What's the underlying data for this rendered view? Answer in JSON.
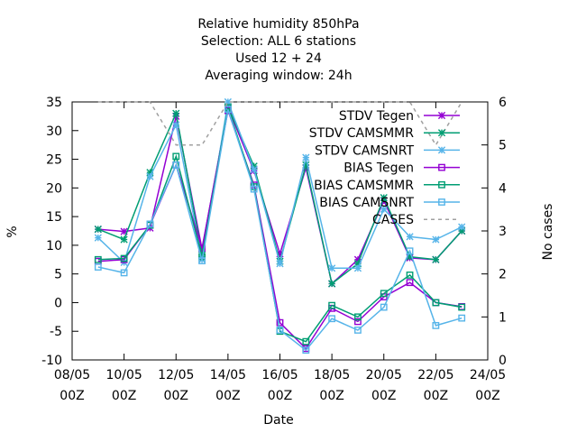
{
  "chart_data": {
    "type": "line",
    "title_lines": [
      "Relative humidity 850hPa",
      "Selection: ALL      6 stations",
      "Used  12 + 24",
      "Averaging window: 24h"
    ],
    "xlabel": "Date",
    "ylabel": "%",
    "y2label": "No cases",
    "xlim": [
      "2024-05-08",
      "2024-05-24"
    ],
    "ylim": [
      -10,
      35
    ],
    "y2lim": [
      0,
      6
    ],
    "xticks": [
      {
        "date": "2024-05-08",
        "label_line1": "08/05",
        "label_line2": "00Z"
      },
      {
        "date": "2024-05-10",
        "label_line1": "10/05",
        "label_line2": "00Z"
      },
      {
        "date": "2024-05-12",
        "label_line1": "12/05",
        "label_line2": "00Z"
      },
      {
        "date": "2024-05-14",
        "label_line1": "14/05",
        "label_line2": "00Z"
      },
      {
        "date": "2024-05-16",
        "label_line1": "16/05",
        "label_line2": "00Z"
      },
      {
        "date": "2024-05-18",
        "label_line1": "18/05",
        "label_line2": "00Z"
      },
      {
        "date": "2024-05-20",
        "label_line1": "20/05",
        "label_line2": "00Z"
      },
      {
        "date": "2024-05-22",
        "label_line1": "22/05",
        "label_line2": "00Z"
      },
      {
        "date": "2024-05-24",
        "label_line1": "24/05",
        "label_line2": "00Z"
      }
    ],
    "yticks": [
      -10,
      -5,
      0,
      5,
      10,
      15,
      20,
      25,
      30,
      35
    ],
    "y2ticks": [
      0,
      1,
      2,
      3,
      4,
      5,
      6
    ],
    "legend_position": "top-right",
    "x": [
      "2024-05-09",
      "2024-05-10",
      "2024-05-11",
      "2024-05-12",
      "2024-05-13",
      "2024-05-14",
      "2024-05-15",
      "2024-05-16",
      "2024-05-17",
      "2024-05-18",
      "2024-05-19",
      "2024-05-20",
      "2024-05-21",
      "2024-05-22",
      "2024-05-23"
    ],
    "series": [
      {
        "name": "STDV Tegen",
        "color": "#9400d3",
        "marker": "star",
        "dashed": false,
        "axis": "y1",
        "values": [
          12.8,
          12.4,
          13.0,
          32.5,
          9.3,
          34.0,
          23.0,
          8.5,
          23.5,
          3.3,
          7.5,
          17.8,
          7.8,
          7.5,
          12.5
        ]
      },
      {
        "name": "STDV CAMSMMR",
        "color": "#009e73",
        "marker": "star",
        "dashed": false,
        "axis": "y1",
        "values": [
          12.8,
          11.0,
          22.7,
          33.0,
          8.3,
          34.2,
          23.8,
          7.2,
          24.0,
          3.3,
          6.8,
          18.3,
          8.0,
          7.5,
          12.5
        ]
      },
      {
        "name": "STDV CAMSNRT",
        "color": "#56b4e9",
        "marker": "star",
        "dashed": false,
        "axis": "y1",
        "values": [
          11.3,
          7.0,
          22.0,
          31.0,
          7.5,
          35.0,
          23.2,
          6.8,
          25.3,
          6.0,
          6.0,
          16.3,
          11.5,
          11.0,
          13.2
        ]
      },
      {
        "name": "BIAS Tegen",
        "color": "#9400d3",
        "marker": "square",
        "dashed": false,
        "axis": "y1",
        "values": [
          7.2,
          7.5,
          13.5,
          24.0,
          9.5,
          33.5,
          20.5,
          -3.5,
          -8.0,
          -1.0,
          -3.3,
          1.0,
          3.5,
          0.0,
          -0.7
        ]
      },
      {
        "name": "BIAS CAMSMMR",
        "color": "#009e73",
        "marker": "square",
        "dashed": false,
        "axis": "y1",
        "values": [
          7.5,
          7.7,
          13.5,
          25.5,
          8.0,
          34.0,
          20.2,
          -5.0,
          -6.8,
          -0.5,
          -2.5,
          1.6,
          4.8,
          0.0,
          -0.8
        ]
      },
      {
        "name": "BIAS CAMSNRT",
        "color": "#56b4e9",
        "marker": "square",
        "dashed": false,
        "axis": "y1",
        "values": [
          6.2,
          5.2,
          13.7,
          24.0,
          7.3,
          33.7,
          19.8,
          -4.8,
          -8.3,
          -2.8,
          -4.8,
          -0.8,
          9.0,
          -4.0,
          -2.7
        ]
      },
      {
        "name": "CASES",
        "color": "#a0a0a0",
        "marker": "none",
        "dashed": true,
        "axis": "y2",
        "values": [
          6,
          6,
          6,
          5,
          5,
          6,
          6,
          6,
          6,
          6,
          6,
          6,
          6,
          5,
          6
        ]
      }
    ]
  }
}
